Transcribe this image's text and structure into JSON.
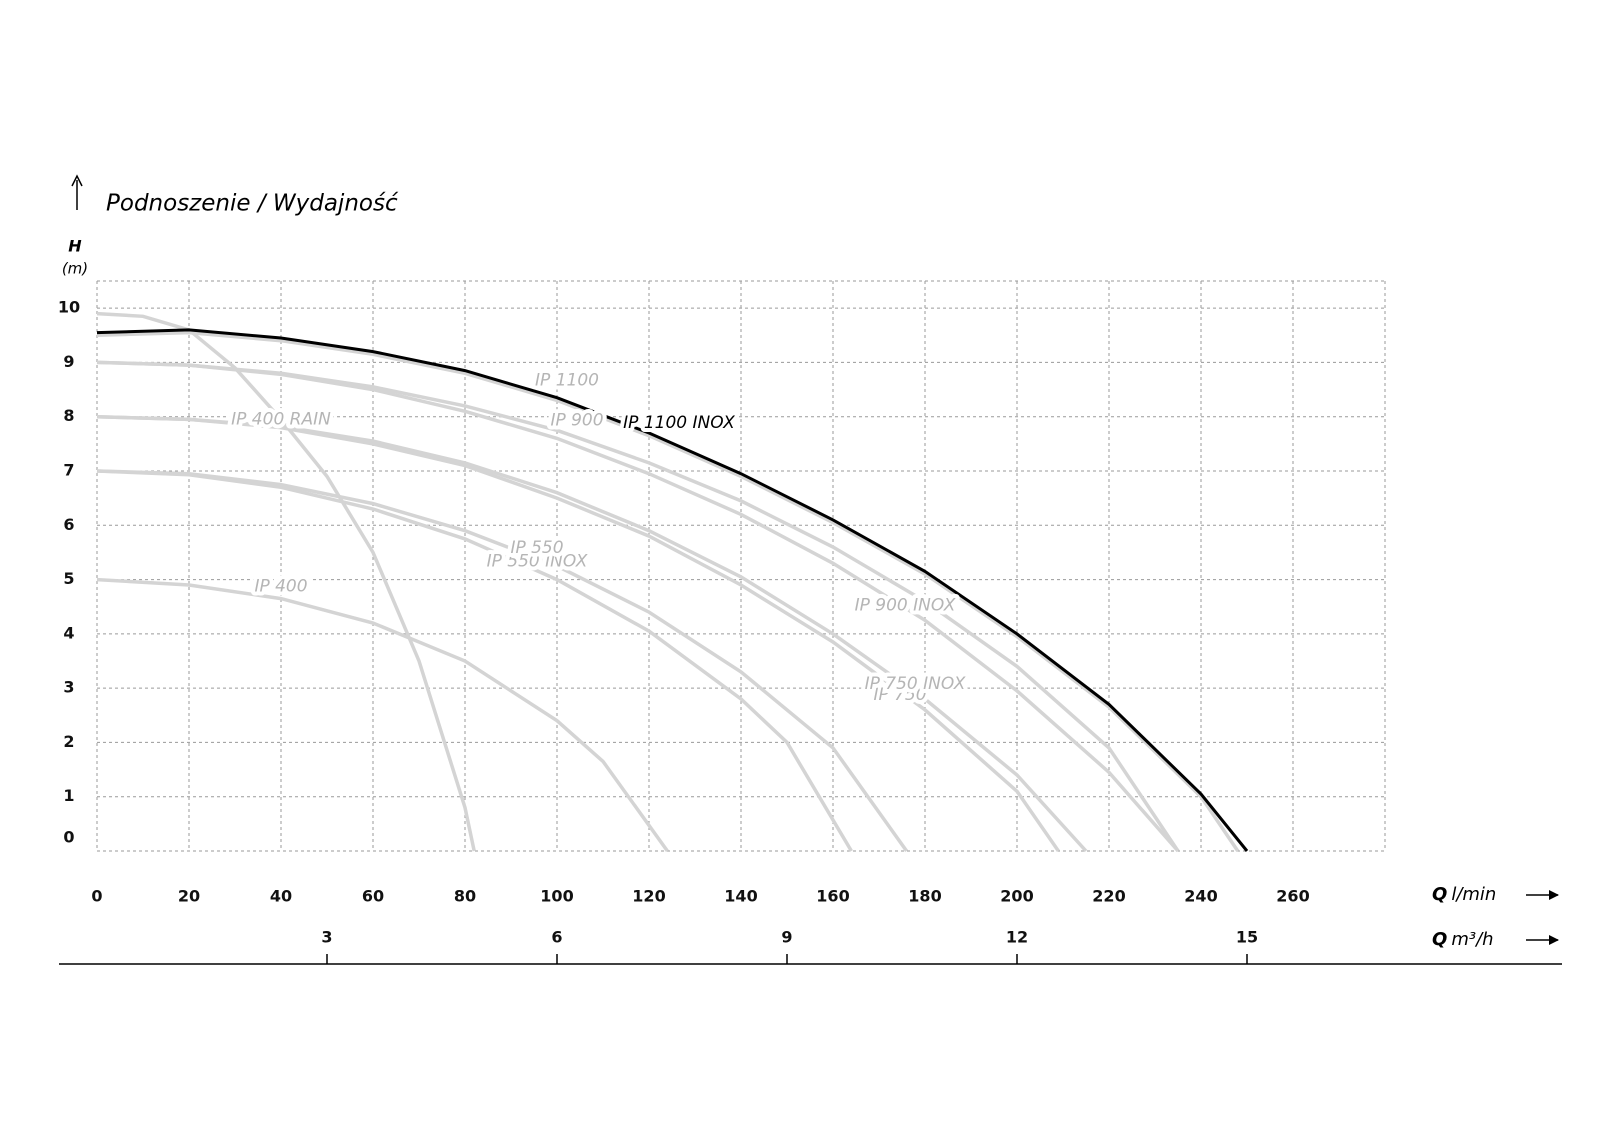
{
  "chart_data": {
    "type": "line",
    "title": "Podnoszenie / Wydajność",
    "y_label": "H",
    "y_unit": "(m)",
    "x_label": {
      "symbol": "Q",
      "unit": "l/min"
    },
    "x2_label": {
      "symbol": "Q",
      "unit": "m³/h"
    },
    "xlim": [
      0,
      280
    ],
    "xticks": [
      0,
      20,
      40,
      60,
      80,
      100,
      120,
      140,
      160,
      180,
      200,
      220,
      240,
      260
    ],
    "x2lim": [
      0,
      16.8
    ],
    "x2ticks": [
      3,
      6,
      9,
      12,
      15
    ],
    "ylim": [
      0,
      10.5
    ],
    "yticks": [
      0,
      1,
      2,
      3,
      4,
      5,
      6,
      7,
      8,
      9,
      10
    ],
    "grid": true,
    "series": [
      {
        "name": "IP 400 RAIN",
        "color": "#d4d4d4",
        "x": [
          0,
          10,
          20,
          30,
          40,
          50,
          60,
          70,
          80,
          82
        ],
        "values": [
          9.9,
          9.85,
          9.6,
          8.9,
          7.95,
          6.9,
          5.5,
          3.5,
          0.8,
          0
        ]
      },
      {
        "name": "IP 400",
        "color": "#d4d4d4",
        "x": [
          0,
          20,
          40,
          60,
          80,
          100,
          110,
          124
        ],
        "values": [
          5,
          4.9,
          4.65,
          4.2,
          3.5,
          2.4,
          1.65,
          0
        ]
      },
      {
        "name": "IP 550 INOX",
        "color": "#d4d4d4",
        "x": [
          0,
          20,
          40,
          60,
          80,
          100,
          120,
          140,
          150,
          164
        ],
        "values": [
          7,
          6.93,
          6.7,
          6.3,
          5.75,
          5.0,
          4.05,
          2.8,
          2.0,
          0
        ]
      },
      {
        "name": "IP 550",
        "color": "#d4d4d4",
        "x": [
          0,
          20,
          40,
          60,
          80,
          100,
          120,
          140,
          160,
          176
        ],
        "values": [
          7,
          6.95,
          6.75,
          6.4,
          5.9,
          5.25,
          4.4,
          3.3,
          1.9,
          0
        ]
      },
      {
        "name": "IP 750",
        "color": "#d4d4d4",
        "x": [
          0,
          20,
          40,
          60,
          80,
          100,
          120,
          140,
          160,
          180,
          200,
          209
        ],
        "values": [
          8,
          7.95,
          7.8,
          7.5,
          7.1,
          6.5,
          5.8,
          4.9,
          3.85,
          2.6,
          1.1,
          0
        ]
      },
      {
        "name": "IP 750 INOX",
        "color": "#d4d4d4",
        "x": [
          0,
          20,
          40,
          60,
          80,
          100,
          120,
          140,
          160,
          180,
          200,
          215
        ],
        "values": [
          8,
          7.95,
          7.82,
          7.55,
          7.15,
          6.6,
          5.9,
          5.05,
          4.0,
          2.8,
          1.4,
          0
        ]
      },
      {
        "name": "IP 900",
        "color": "#d4d4d4",
        "x": [
          0,
          20,
          40,
          60,
          80,
          100,
          120,
          140,
          160,
          180,
          200,
          220,
          235
        ],
        "values": [
          9,
          8.95,
          8.8,
          8.55,
          8.2,
          7.75,
          7.15,
          6.45,
          5.6,
          4.6,
          3.4,
          1.9,
          0
        ]
      },
      {
        "name": "IP 900 INOX",
        "color": "#d4d4d4",
        "x": [
          0,
          20,
          40,
          60,
          80,
          100,
          120,
          140,
          160,
          180,
          200,
          220,
          235
        ],
        "values": [
          9,
          8.95,
          8.78,
          8.5,
          8.1,
          7.6,
          6.95,
          6.2,
          5.3,
          4.25,
          2.95,
          1.45,
          0
        ]
      },
      {
        "name": "IP 1100",
        "color": "#d4d4d4",
        "x": [
          0,
          20,
          40,
          60,
          80,
          100,
          120,
          140,
          160,
          180,
          200,
          220,
          240,
          248
        ],
        "values": [
          9.5,
          9.55,
          9.4,
          9.15,
          8.8,
          8.3,
          7.65,
          6.9,
          6.05,
          5.1,
          3.95,
          2.65,
          1.0,
          0
        ]
      },
      {
        "name": "IP 1100 INOX",
        "color": "#000000",
        "x": [
          0,
          20,
          40,
          60,
          80,
          100,
          120,
          140,
          160,
          180,
          200,
          220,
          240,
          250
        ],
        "values": [
          9.55,
          9.6,
          9.45,
          9.2,
          8.85,
          8.35,
          7.7,
          6.95,
          6.1,
          5.15,
          4.0,
          2.7,
          1.05,
          0
        ]
      }
    ]
  }
}
